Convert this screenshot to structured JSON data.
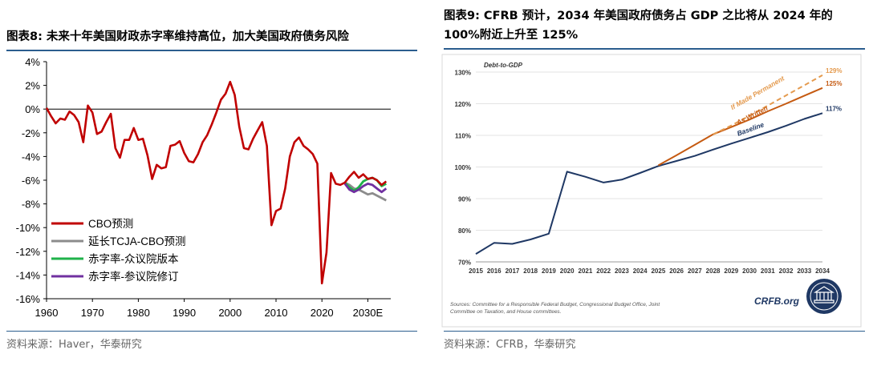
{
  "left": {
    "title": "图表8:  未来十年美国财政赤字率维持高位，加大美国政府债务风险",
    "source": "资料来源：Haver，华泰研究",
    "chart_data": {
      "type": "line",
      "ylim": [
        -16,
        4
      ],
      "xlim": [
        1960,
        2035
      ],
      "y_ticks": [
        4,
        2,
        0,
        -2,
        -4,
        -6,
        -8,
        -10,
        -12,
        -14,
        -16
      ],
      "y_tick_labels": [
        "4%",
        "2%",
        "0%",
        "-2%",
        "-4%",
        "-6%",
        "-8%",
        "-10%",
        "-12%",
        "-14%",
        "-16%"
      ],
      "x_ticks": [
        1960,
        1970,
        1980,
        1990,
        2000,
        2010,
        2020,
        2030
      ],
      "x_tick_labels": [
        "1960",
        "1970",
        "1980",
        "1990",
        "2000",
        "2010",
        "2020",
        "2030E"
      ],
      "legend_position": "lower-left",
      "series": [
        {
          "name": "CBO预测",
          "color": "#c00000",
          "points": [
            [
              1960,
              0.1
            ],
            [
              1961,
              -0.6
            ],
            [
              1962,
              -1.2
            ],
            [
              1963,
              -0.8
            ],
            [
              1964,
              -0.9
            ],
            [
              1965,
              -0.2
            ],
            [
              1966,
              -0.5
            ],
            [
              1967,
              -1.1
            ],
            [
              1968,
              -2.8
            ],
            [
              1969,
              0.3
            ],
            [
              1970,
              -0.3
            ],
            [
              1971,
              -2.1
            ],
            [
              1972,
              -1.9
            ],
            [
              1973,
              -1.1
            ],
            [
              1974,
              -0.4
            ],
            [
              1975,
              -3.3
            ],
            [
              1976,
              -4.1
            ],
            [
              1977,
              -2.6
            ],
            [
              1978,
              -2.6
            ],
            [
              1979,
              -1.6
            ],
            [
              1980,
              -2.6
            ],
            [
              1981,
              -2.5
            ],
            [
              1982,
              -3.9
            ],
            [
              1983,
              -5.9
            ],
            [
              1984,
              -4.7
            ],
            [
              1985,
              -5.0
            ],
            [
              1986,
              -4.9
            ],
            [
              1987,
              -3.1
            ],
            [
              1988,
              -3.0
            ],
            [
              1989,
              -2.7
            ],
            [
              1990,
              -3.7
            ],
            [
              1991,
              -4.4
            ],
            [
              1992,
              -4.5
            ],
            [
              1993,
              -3.8
            ],
            [
              1994,
              -2.8
            ],
            [
              1995,
              -2.2
            ],
            [
              1996,
              -1.3
            ],
            [
              1997,
              -0.3
            ],
            [
              1998,
              0.8
            ],
            [
              1999,
              1.3
            ],
            [
              2000,
              2.3
            ],
            [
              2001,
              1.2
            ],
            [
              2002,
              -1.5
            ],
            [
              2003,
              -3.3
            ],
            [
              2004,
              -3.4
            ],
            [
              2005,
              -2.5
            ],
            [
              2006,
              -1.8
            ],
            [
              2007,
              -1.1
            ],
            [
              2008,
              -3.1
            ],
            [
              2009,
              -9.8
            ],
            [
              2010,
              -8.6
            ],
            [
              2011,
              -8.4
            ],
            [
              2012,
              -6.7
            ],
            [
              2013,
              -4.0
            ],
            [
              2014,
              -2.8
            ],
            [
              2015,
              -2.4
            ],
            [
              2016,
              -3.1
            ],
            [
              2017,
              -3.4
            ],
            [
              2018,
              -3.8
            ],
            [
              2019,
              -4.6
            ],
            [
              2020,
              -14.7
            ],
            [
              2021,
              -12.1
            ],
            [
              2022,
              -5.4
            ],
            [
              2023,
              -6.3
            ],
            [
              2024,
              -6.4
            ],
            [
              2025,
              -6.2
            ],
            [
              2026,
              -5.7
            ],
            [
              2027,
              -5.3
            ],
            [
              2028,
              -5.8
            ],
            [
              2029,
              -5.5
            ],
            [
              2030,
              -5.9
            ],
            [
              2031,
              -5.8
            ],
            [
              2032,
              -6.0
            ],
            [
              2033,
              -6.4
            ],
            [
              2034,
              -6.1
            ]
          ]
        },
        {
          "name": "延长TCJA-CBO预测",
          "color": "#8c8c8c",
          "points": [
            [
              2025,
              -6.2
            ],
            [
              2026,
              -6.4
            ],
            [
              2027,
              -6.7
            ],
            [
              2028,
              -6.8
            ],
            [
              2029,
              -7.0
            ],
            [
              2030,
              -7.2
            ],
            [
              2031,
              -7.1
            ],
            [
              2032,
              -7.3
            ],
            [
              2033,
              -7.5
            ],
            [
              2034,
              -7.7
            ]
          ]
        },
        {
          "name": "赤字率-众议院版本",
          "color": "#1fb24a",
          "points": [
            [
              2025,
              -6.2
            ],
            [
              2026,
              -6.6
            ],
            [
              2027,
              -6.9
            ],
            [
              2028,
              -6.6
            ],
            [
              2029,
              -6.1
            ],
            [
              2030,
              -5.9
            ],
            [
              2031,
              -5.8
            ],
            [
              2032,
              -6.0
            ],
            [
              2033,
              -6.5
            ],
            [
              2034,
              -6.3
            ]
          ]
        },
        {
          "name": "赤字率-参议院修订",
          "color": "#7030a0",
          "points": [
            [
              2025,
              -6.3
            ],
            [
              2026,
              -6.8
            ],
            [
              2027,
              -7.0
            ],
            [
              2028,
              -6.8
            ],
            [
              2029,
              -6.5
            ],
            [
              2030,
              -6.3
            ],
            [
              2031,
              -6.4
            ],
            [
              2032,
              -6.7
            ],
            [
              2033,
              -7.0
            ],
            [
              2034,
              -6.7
            ]
          ]
        }
      ]
    }
  },
  "right": {
    "title": "图表9:  CFRB 预计，2034 年美国政府债务占 GDP 之比将从 2024 年的 100%附近上升至 125%",
    "source": "资料来源：CFRB，华泰研究",
    "chart_data": {
      "type": "line",
      "subtitle": "Debt-to-GDP",
      "ylim": [
        70,
        130
      ],
      "xlim": [
        2015,
        2034
      ],
      "y_ticks": [
        70,
        80,
        90,
        100,
        110,
        120,
        130
      ],
      "y_tick_labels": [
        "70%",
        "80%",
        "90%",
        "100%",
        "110%",
        "120%",
        "130%"
      ],
      "x_ticks": [
        2015,
        2016,
        2017,
        2018,
        2019,
        2020,
        2021,
        2022,
        2023,
        2024,
        2025,
        2026,
        2027,
        2028,
        2029,
        2030,
        2031,
        2032,
        2033,
        2034
      ],
      "x_tick_labels": [
        "2015",
        "2016",
        "2017",
        "2018",
        "2019",
        "2020",
        "2021",
        "2022",
        "2023",
        "2024",
        "2025",
        "2026",
        "2027",
        "2028",
        "2029",
        "2030",
        "2031",
        "2032",
        "2033",
        "2034"
      ],
      "series": [
        {
          "name": "Baseline",
          "end_label": "117%",
          "color": "#1f3864",
          "points": [
            [
              2015,
              72.5
            ],
            [
              2016,
              76.0
            ],
            [
              2017,
              75.7
            ],
            [
              2018,
              77.1
            ],
            [
              2019,
              78.9
            ],
            [
              2020,
              98.5
            ],
            [
              2021,
              96.9
            ],
            [
              2022,
              95.1
            ],
            [
              2023,
              96.0
            ],
            [
              2024,
              98.1
            ],
            [
              2025,
              100.3
            ],
            [
              2026,
              101.9
            ],
            [
              2027,
              103.5
            ],
            [
              2028,
              105.5
            ],
            [
              2029,
              107.4
            ],
            [
              2030,
              109.2
            ],
            [
              2031,
              111.0
            ],
            [
              2032,
              113.0
            ],
            [
              2033,
              115.2
            ],
            [
              2034,
              117.0
            ]
          ]
        },
        {
          "name": "As Written",
          "end_label": "125%",
          "color": "#c55a11",
          "points": [
            [
              2025,
              100.5
            ],
            [
              2026,
              103.7
            ],
            [
              2027,
              107.0
            ],
            [
              2028,
              110.3
            ],
            [
              2029,
              112.6
            ],
            [
              2030,
              115.0
            ],
            [
              2031,
              117.6
            ],
            [
              2032,
              120.0
            ],
            [
              2033,
              122.5
            ],
            [
              2034,
              125.0
            ]
          ]
        },
        {
          "name": "If Made Permanent",
          "end_label": "129%",
          "color": "#e49a4e",
          "dashed": true,
          "points": [
            [
              2028,
              110.3
            ],
            [
              2029,
              113.1
            ],
            [
              2030,
              116.2
            ],
            [
              2031,
              119.4
            ],
            [
              2032,
              122.6
            ],
            [
              2033,
              125.8
            ],
            [
              2034,
              129.0
            ]
          ]
        }
      ],
      "notes": "Sources: Committee for a Responsible Federal Budget, Congressional Budget Office, Joint Committee on Taxation, and House committees.",
      "logo_text": "CRFB.org"
    }
  },
  "colors": {
    "rule": "#2b5d8e",
    "grid": "#d9d9d9",
    "axis": "#000000"
  }
}
